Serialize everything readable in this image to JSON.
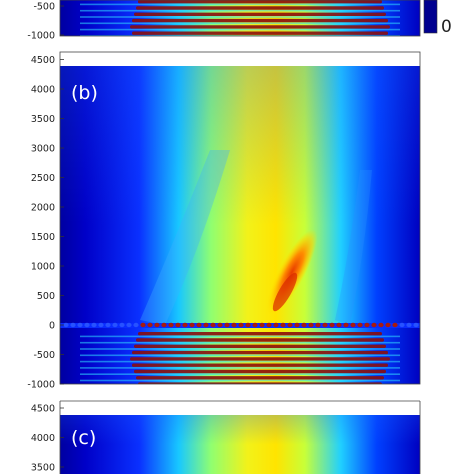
{
  "chart_data": [
    {
      "type": "heatmap",
      "panel_label": "",
      "y_tick_labels": [
        "-500",
        "-1000"
      ],
      "y_ticks": [
        -500,
        -1000
      ],
      "colorbar": {
        "tick_labels": [
          "0"
        ]
      }
    },
    {
      "type": "heatmap",
      "panel_label": "(b)",
      "ylim": [
        -1050,
        4550
      ],
      "y_tick_labels": [
        "4500",
        "4000",
        "3500",
        "3000",
        "2500",
        "2000",
        "1500",
        "1000",
        "500",
        "0",
        "-500",
        "-1000"
      ],
      "y_ticks": [
        4500,
        4000,
        3500,
        3000,
        2500,
        2000,
        1500,
        1000,
        500,
        0,
        -500,
        -1000
      ],
      "grid": false
    },
    {
      "type": "heatmap",
      "panel_label": "(c)",
      "y_tick_labels": [
        "4500",
        "4000",
        "3500"
      ],
      "y_ticks": [
        4500,
        4000,
        3500
      ]
    }
  ],
  "colormap": [
    "#00008f",
    "#0000ff",
    "#00ffff",
    "#ffff00",
    "#ff0000",
    "#800000"
  ]
}
